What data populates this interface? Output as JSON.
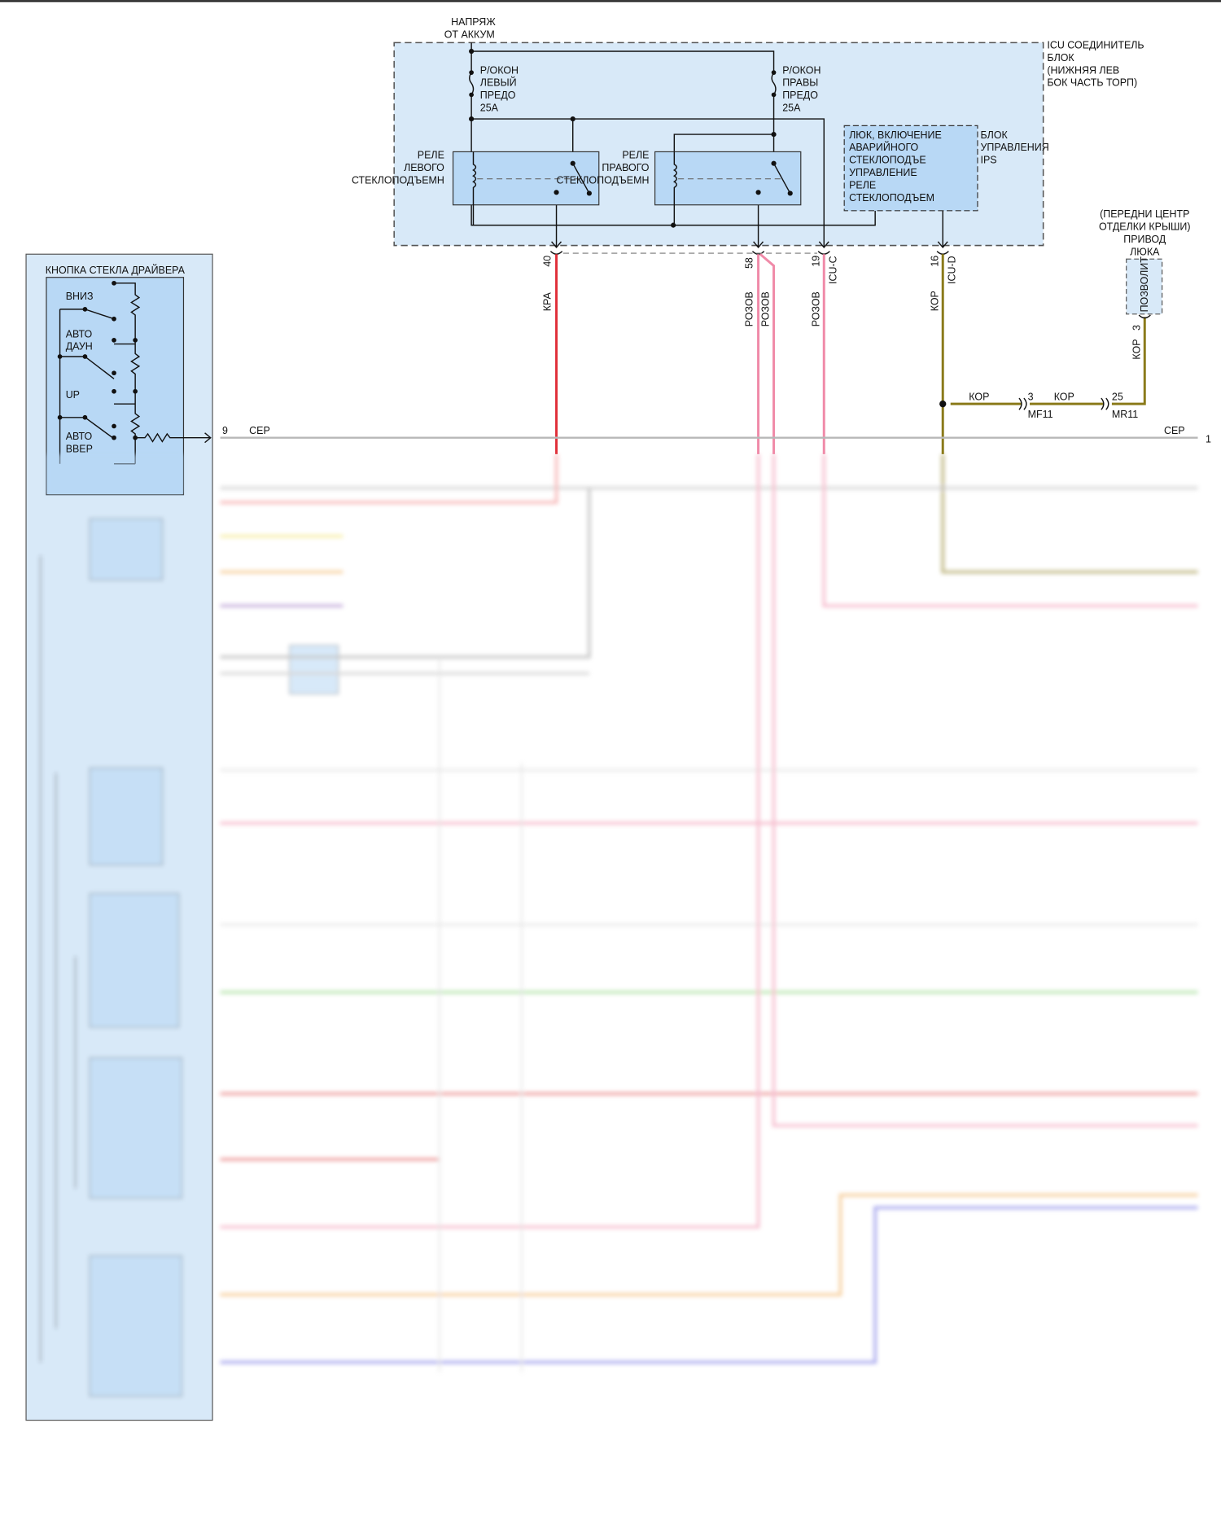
{
  "battery": {
    "line1": "НАПРЯЖ",
    "line2": "ОТ АККУМ"
  },
  "icu": {
    "label": [
      "ICU СОЕДИНИТЕЛЬ",
      "БЛОК",
      "(НИЖНЯЯ ЛЕВ",
      "БОК ЧАСТЬ ТОРП)"
    ]
  },
  "fuse_left": [
    "Р/ОКОН",
    "ЛЕВЫЙ",
    "ПРЕДО",
    "25А"
  ],
  "fuse_right": [
    "Р/ОКОН",
    "ПРАВЫ",
    "ПРЕДО",
    "25А"
  ],
  "relay_left": [
    "РЕЛЕ",
    "ЛЕВОГО",
    "СТЕКЛОПОДЪЕМН"
  ],
  "relay_right": [
    "РЕЛЕ",
    "ПРАВОГО",
    "СТЕКЛОПОДЪЕМН"
  ],
  "ips": {
    "a": "ЛЮК, ВКЛЮЧЕНИЕ",
    "b": "БЛОК",
    "c": "УПРАВЛЕНИЯ",
    "d": "УПРАВЛЕНИЕ",
    "e": "АВАРИЙНОГО",
    "f": "IPS",
    "g": "РЕЛЕ",
    "h": "СТЕКЛОПОДЪЕ",
    "i": "СТЕКЛОПОДЪЕМ"
  },
  "connectors": {
    "c40": {
      "pin": "40",
      "wire": "КРА"
    },
    "c58": {
      "pin": "58",
      "wire1": "РОЗОВ",
      "wire2": "РОЗОВ"
    },
    "c19": {
      "pin": "19",
      "id": "ICU-C",
      "wire": "РОЗОВ"
    },
    "c16": {
      "pin": "16",
      "id": "ICU-D",
      "wire": "КОР"
    }
  },
  "sunroof": {
    "label": [
      "(ПЕРЕДНИ ЦЕНТР",
      "ОТДЕЛКИ КРЫШИ)",
      "ПРИВОД",
      "ЛЮКА"
    ],
    "box": "ПОЗВОЛИТ",
    "pin": "3",
    "wire": "КОР"
  },
  "kor_run": {
    "wire1": "КОР",
    "pin_mf": "3",
    "mf": "MF11",
    "wire2": "КОР",
    "pin_mr": "25",
    "mr": "MR11"
  },
  "ser_line": {
    "pin_left": "9",
    "wire_left": "СЕР",
    "wire_right": "СЕР",
    "pin_right": "1"
  },
  "driver_switch": {
    "title": "КНОПКА СТЕКЛА ДРАЙВЕРА",
    "positions": [
      "ВНИЗ",
      "АВТО",
      "ДАУН",
      "UP",
      "АВТО",
      "ВВЕР"
    ]
  },
  "wire_colors": {
    "red": "#e0303a",
    "pink": "#f08aa8",
    "olive": "#8a7a1a",
    "gray": "#b8b8b8",
    "yellow": "#f0e060",
    "orange": "#f0a850",
    "purple": "#9a70c0",
    "green": "#80d070",
    "blue": "#6060e0",
    "box_fill": "#d8e9f8",
    "inner_fill": "#b8d8f5"
  }
}
